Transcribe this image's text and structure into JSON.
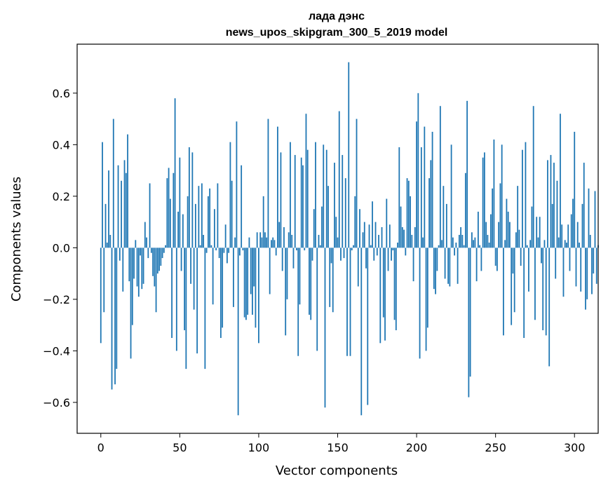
{
  "chart_data": {
    "type": "bar",
    "title": "лада дэнс",
    "subtitle": "news_upos_skipgram_300_5_2019 model",
    "xlabel": "Vector components",
    "ylabel": "Components values",
    "xlim": [
      -15,
      315
    ],
    "ylim": [
      -0.72,
      0.79
    ],
    "x_ticks": [
      0,
      50,
      100,
      150,
      200,
      250,
      300
    ],
    "x_tick_labels": [
      "0",
      "50",
      "100",
      "150",
      "200",
      "250",
      "300"
    ],
    "y_ticks": [
      -0.6,
      -0.4,
      -0.2,
      0.0,
      0.2,
      0.4,
      0.6
    ],
    "y_tick_labels": [
      "−0.6",
      "−0.4",
      "−0.2",
      "0.0",
      "0.2",
      "0.4",
      "0.6"
    ],
    "grid": false,
    "bar_color": "#1f77b4",
    "values": [
      -0.37,
      0.41,
      -0.25,
      0.17,
      0.02,
      0.3,
      0.05,
      -0.55,
      0.5,
      -0.53,
      -0.47,
      0.32,
      -0.05,
      0.26,
      -0.17,
      0.34,
      0.29,
      0.44,
      -0.13,
      -0.43,
      -0.3,
      -0.12,
      0.03,
      -0.15,
      -0.19,
      -0.03,
      -0.16,
      -0.14,
      0.1,
      0.04,
      -0.04,
      0.25,
      -0.02,
      -0.11,
      -0.15,
      -0.25,
      -0.1,
      -0.09,
      -0.07,
      -0.04,
      -0.02,
      0.01,
      0.27,
      0.31,
      0.19,
      -0.35,
      0.29,
      0.58,
      -0.4,
      0.14,
      0.35,
      -0.09,
      0.13,
      -0.32,
      -0.47,
      0.2,
      0.39,
      -0.14,
      0.37,
      -0.24,
      0.17,
      -0.41,
      0.24,
      0.01,
      0.25,
      0.05,
      -0.47,
      -0.02,
      0.2,
      0.23,
      0.01,
      -0.22,
      0.15,
      -0.01,
      0.25,
      -0.04,
      -0.35,
      -0.31,
      -0.02,
      0.09,
      -0.06,
      -0.02,
      0.41,
      0.26,
      -0.23,
      0.04,
      0.49,
      -0.65,
      -0.03,
      0.32,
      -0.01,
      -0.27,
      -0.28,
      -0.26,
      0.04,
      -0.18,
      -0.26,
      -0.15,
      -0.31,
      0.06,
      -0.37,
      0.06,
      0.04,
      0.2,
      0.06,
      0.04,
      0.5,
      -0.18,
      0.03,
      0.04,
      0.03,
      -0.03,
      0.47,
      0.1,
      0.37,
      -0.09,
      0.08,
      -0.34,
      -0.2,
      0.06,
      0.41,
      0.05,
      -0.08,
      0.36,
      -0.01,
      -0.42,
      -0.22,
      0.35,
      0.32,
      -0.01,
      0.52,
      0.38,
      -0.26,
      -0.28,
      -0.05,
      0.15,
      0.41,
      -0.4,
      0.05,
      0.01,
      0.16,
      0.4,
      -0.62,
      0.38,
      0.24,
      -0.23,
      -0.06,
      -0.25,
      0.33,
      0.12,
      0.04,
      0.53,
      -0.05,
      0.36,
      -0.04,
      0.27,
      -0.42,
      0.72,
      -0.42,
      -0.01,
      0.01,
      0.2,
      0.5,
      -0.15,
      0.15,
      -0.65,
      0.06,
      0.1,
      -0.08,
      -0.61,
      0.09,
      0.01,
      0.18,
      -0.05,
      0.1,
      -0.03,
      0.05,
      -0.37,
      0.08,
      -0.27,
      -0.36,
      0.19,
      -0.09,
      0.09,
      -0.05,
      -0.01,
      -0.28,
      -0.32,
      0.02,
      0.39,
      0.16,
      0.08,
      0.07,
      -0.03,
      0.27,
      0.26,
      0.2,
      0.05,
      -0.13,
      0.08,
      0.49,
      0.6,
      -0.43,
      0.39,
      0.04,
      0.47,
      -0.4,
      -0.31,
      0.27,
      0.34,
      0.45,
      -0.16,
      -0.18,
      -0.09,
      0.01,
      0.55,
      0.03,
      0.24,
      -0.12,
      0.17,
      -0.14,
      -0.15,
      0.4,
      0.04,
      -0.03,
      0.02,
      -0.14,
      0.05,
      0.08,
      0.05,
      0.01,
      0.29,
      0.57,
      -0.58,
      -0.5,
      0.06,
      0.03,
      0.04,
      -0.13,
      0.14,
      0.01,
      -0.09,
      0.35,
      0.37,
      0.1,
      0.05,
      0.02,
      0.13,
      0.23,
      0.42,
      -0.07,
      -0.09,
      0.1,
      0.25,
      0.4,
      -0.34,
      0.03,
      0.19,
      0.14,
      0.1,
      -0.3,
      -0.1,
      -0.25,
      0.06,
      0.24,
      0.07,
      -0.07,
      0.38,
      -0.35,
      0.41,
      0.01,
      -0.17,
      0.03,
      0.16,
      0.55,
      -0.28,
      0.12,
      0.04,
      0.12,
      -0.06,
      -0.32,
      0.03,
      -0.34,
      0.34,
      -0.46,
      0.36,
      0.17,
      0.33,
      -0.12,
      0.26,
      0.04,
      0.52,
      0.09,
      -0.19,
      0.03,
      0.02,
      0.09,
      -0.09,
      0.13,
      0.19,
      0.45,
      -0.15,
      0.1,
      0.02,
      -0.17,
      0.17,
      0.33,
      -0.24,
      -0.2,
      0.23,
      0.05,
      -0.18,
      -0.1,
      0.22,
      -0.14,
      0.01
    ]
  }
}
